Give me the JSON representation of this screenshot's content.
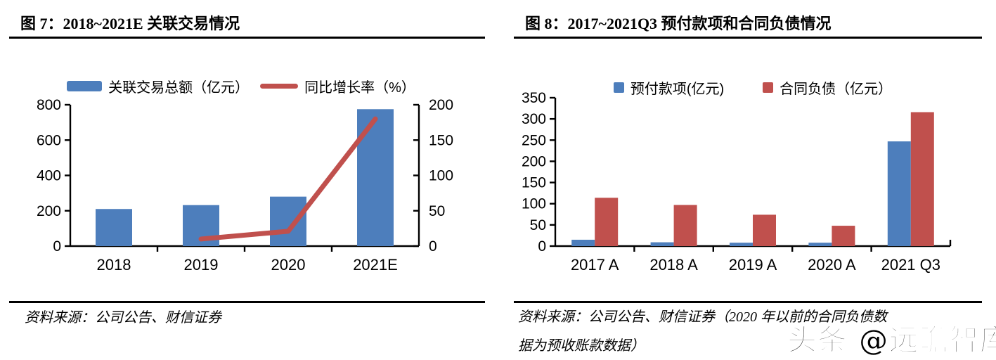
{
  "figure7": {
    "title": "图 7：2018~2021E 关联交易情况",
    "source": "资料来源：公司公告、财信证券"
  },
  "figure8": {
    "title": "图 8：2017~2021Q3 预付款项和合同负债情况",
    "source_line1": "资料来源：公司公告、财信证券（2020 年以前的合同负债数",
    "source_line2": "据为预收账款数据）"
  },
  "watermark": "头条 @远瞻智库",
  "colors": {
    "bar_blue": "#4d7ebc",
    "bar_red": "#c0504d",
    "axis": "#000000"
  },
  "chart_data": [
    {
      "type": "bar",
      "subtype": "bars with line on secondary axis",
      "title": "2018~2021E 关联交易情况",
      "categories": [
        "2018",
        "2019",
        "2020",
        "2021E"
      ],
      "series": [
        {
          "name": "关联交易总额（亿元）",
          "kind": "bar",
          "axis": "left",
          "color": "#4d7ebc",
          "values": [
            210,
            232,
            280,
            775
          ]
        },
        {
          "name": "同比增长率（%）",
          "kind": "line",
          "axis": "right",
          "color": "#c0504d",
          "values": [
            null,
            10,
            21,
            180
          ]
        }
      ],
      "left_axis": {
        "min": 0,
        "max": 800,
        "ticks": [
          0,
          200,
          400,
          600,
          800
        ]
      },
      "right_axis": {
        "min": 0,
        "max": 200,
        "ticks": [
          0,
          50,
          100,
          150,
          200
        ]
      },
      "legend_position": "top",
      "grid": false
    },
    {
      "type": "bar",
      "subtype": "grouped bars",
      "title": "2017~2021Q3 预付款项和合同负债情况",
      "categories": [
        "2017 A",
        "2018 A",
        "2019 A",
        "2020 A",
        "2021 Q3"
      ],
      "series": [
        {
          "name": "预付款项(亿元)",
          "kind": "bar",
          "color": "#4d7ebc",
          "values": [
            15,
            9,
            8,
            8,
            247
          ]
        },
        {
          "name": "合同负债（亿元）",
          "kind": "bar",
          "color": "#c0504d",
          "values": [
            114,
            97,
            74,
            48,
            316
          ]
        }
      ],
      "y_axis": {
        "min": 0,
        "max": 350,
        "ticks": [
          0,
          50,
          100,
          150,
          200,
          250,
          300,
          350
        ]
      },
      "legend_position": "top",
      "grid": false
    }
  ]
}
